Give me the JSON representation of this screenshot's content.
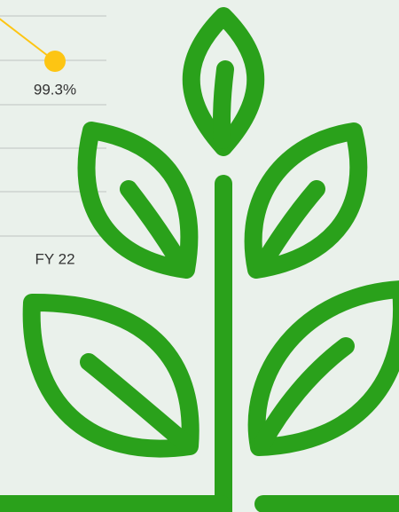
{
  "chart_data": {
    "type": "line",
    "categories": [
      "FY 22"
    ],
    "values": [
      99.3
    ],
    "value_labels": [
      "99.3%"
    ],
    "color": "#fdc513",
    "ylim": [
      0,
      125
    ]
  }
}
